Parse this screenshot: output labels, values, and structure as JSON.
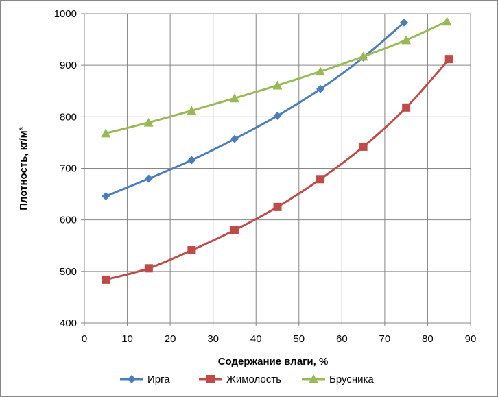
{
  "chart_data": {
    "type": "line",
    "xlabel": "Содержание влаги, %",
    "ylabel": "Плотность, кг/м³",
    "xlim": [
      0,
      90
    ],
    "ylim": [
      400,
      1000
    ],
    "x_ticks": [
      0,
      10,
      20,
      30,
      40,
      50,
      60,
      70,
      80,
      90
    ],
    "y_ticks": [
      400,
      500,
      600,
      700,
      800,
      900,
      1000
    ],
    "grid": true,
    "legend_position": "bottom",
    "series": [
      {
        "name": "Ирга",
        "color": "#4a7ebb",
        "marker": "diamond",
        "x": [
          5,
          15,
          25,
          35,
          45,
          55,
          65,
          74.5
        ],
        "y": [
          646,
          680,
          716,
          757,
          802,
          854,
          915,
          983
        ]
      },
      {
        "name": "Жимолость",
        "color": "#be4b48",
        "marker": "square",
        "x": [
          5,
          15,
          25,
          35,
          45,
          55,
          65,
          75,
          85
        ],
        "y": [
          484,
          506,
          541,
          580,
          625,
          679,
          742,
          818,
          912
        ]
      },
      {
        "name": "Брусника",
        "color": "#98b954",
        "marker": "triangle",
        "x": [
          5,
          15,
          25,
          35,
          45,
          55,
          65,
          75,
          84.5
        ],
        "y": [
          768,
          789,
          812,
          836,
          861,
          888,
          917,
          949,
          985
        ]
      }
    ]
  }
}
